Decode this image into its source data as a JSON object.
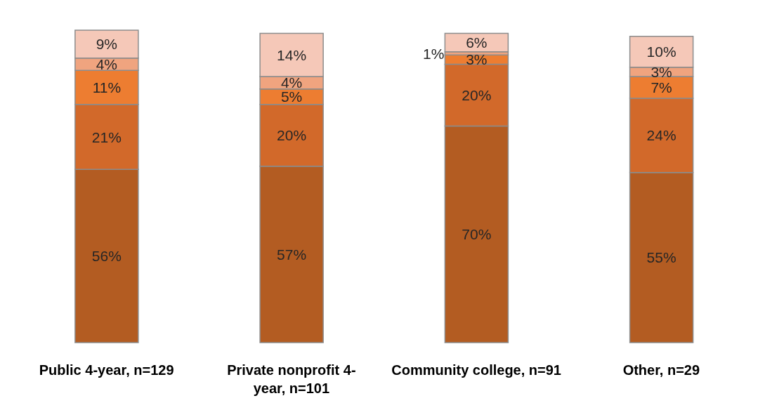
{
  "chart_data": {
    "type": "bar",
    "stacked": true,
    "tick_labels": "x",
    "categories": [
      "Public 4-year, n=129",
      "Private nonprofit 4-year, n=101",
      "Community college, n=91",
      "Other, n=29"
    ],
    "series": [
      {
        "color": "#b35c22",
        "values": [
          56,
          57,
          70,
          55
        ],
        "value_labels": [
          "56%",
          "57%",
          "70%",
          "55%"
        ]
      },
      {
        "color": "#d2692a",
        "values": [
          21,
          20,
          20,
          24
        ],
        "value_labels": [
          "21%",
          "20%",
          "20%",
          "24%"
        ]
      },
      {
        "color": "#ed7d31",
        "values": [
          11,
          5,
          3,
          7
        ],
        "value_labels": [
          "11%",
          "5%",
          "3%",
          "7%"
        ]
      },
      {
        "color": "#f0a47f",
        "values": [
          4,
          4,
          1,
          3
        ],
        "value_labels": [
          "4%",
          "4%",
          "1%",
          "3%"
        ]
      },
      {
        "color": "#f5c8b8",
        "values": [
          9,
          14,
          6,
          10
        ],
        "value_labels": [
          "9%",
          "14%",
          "6%",
          "10%"
        ]
      }
    ]
  }
}
